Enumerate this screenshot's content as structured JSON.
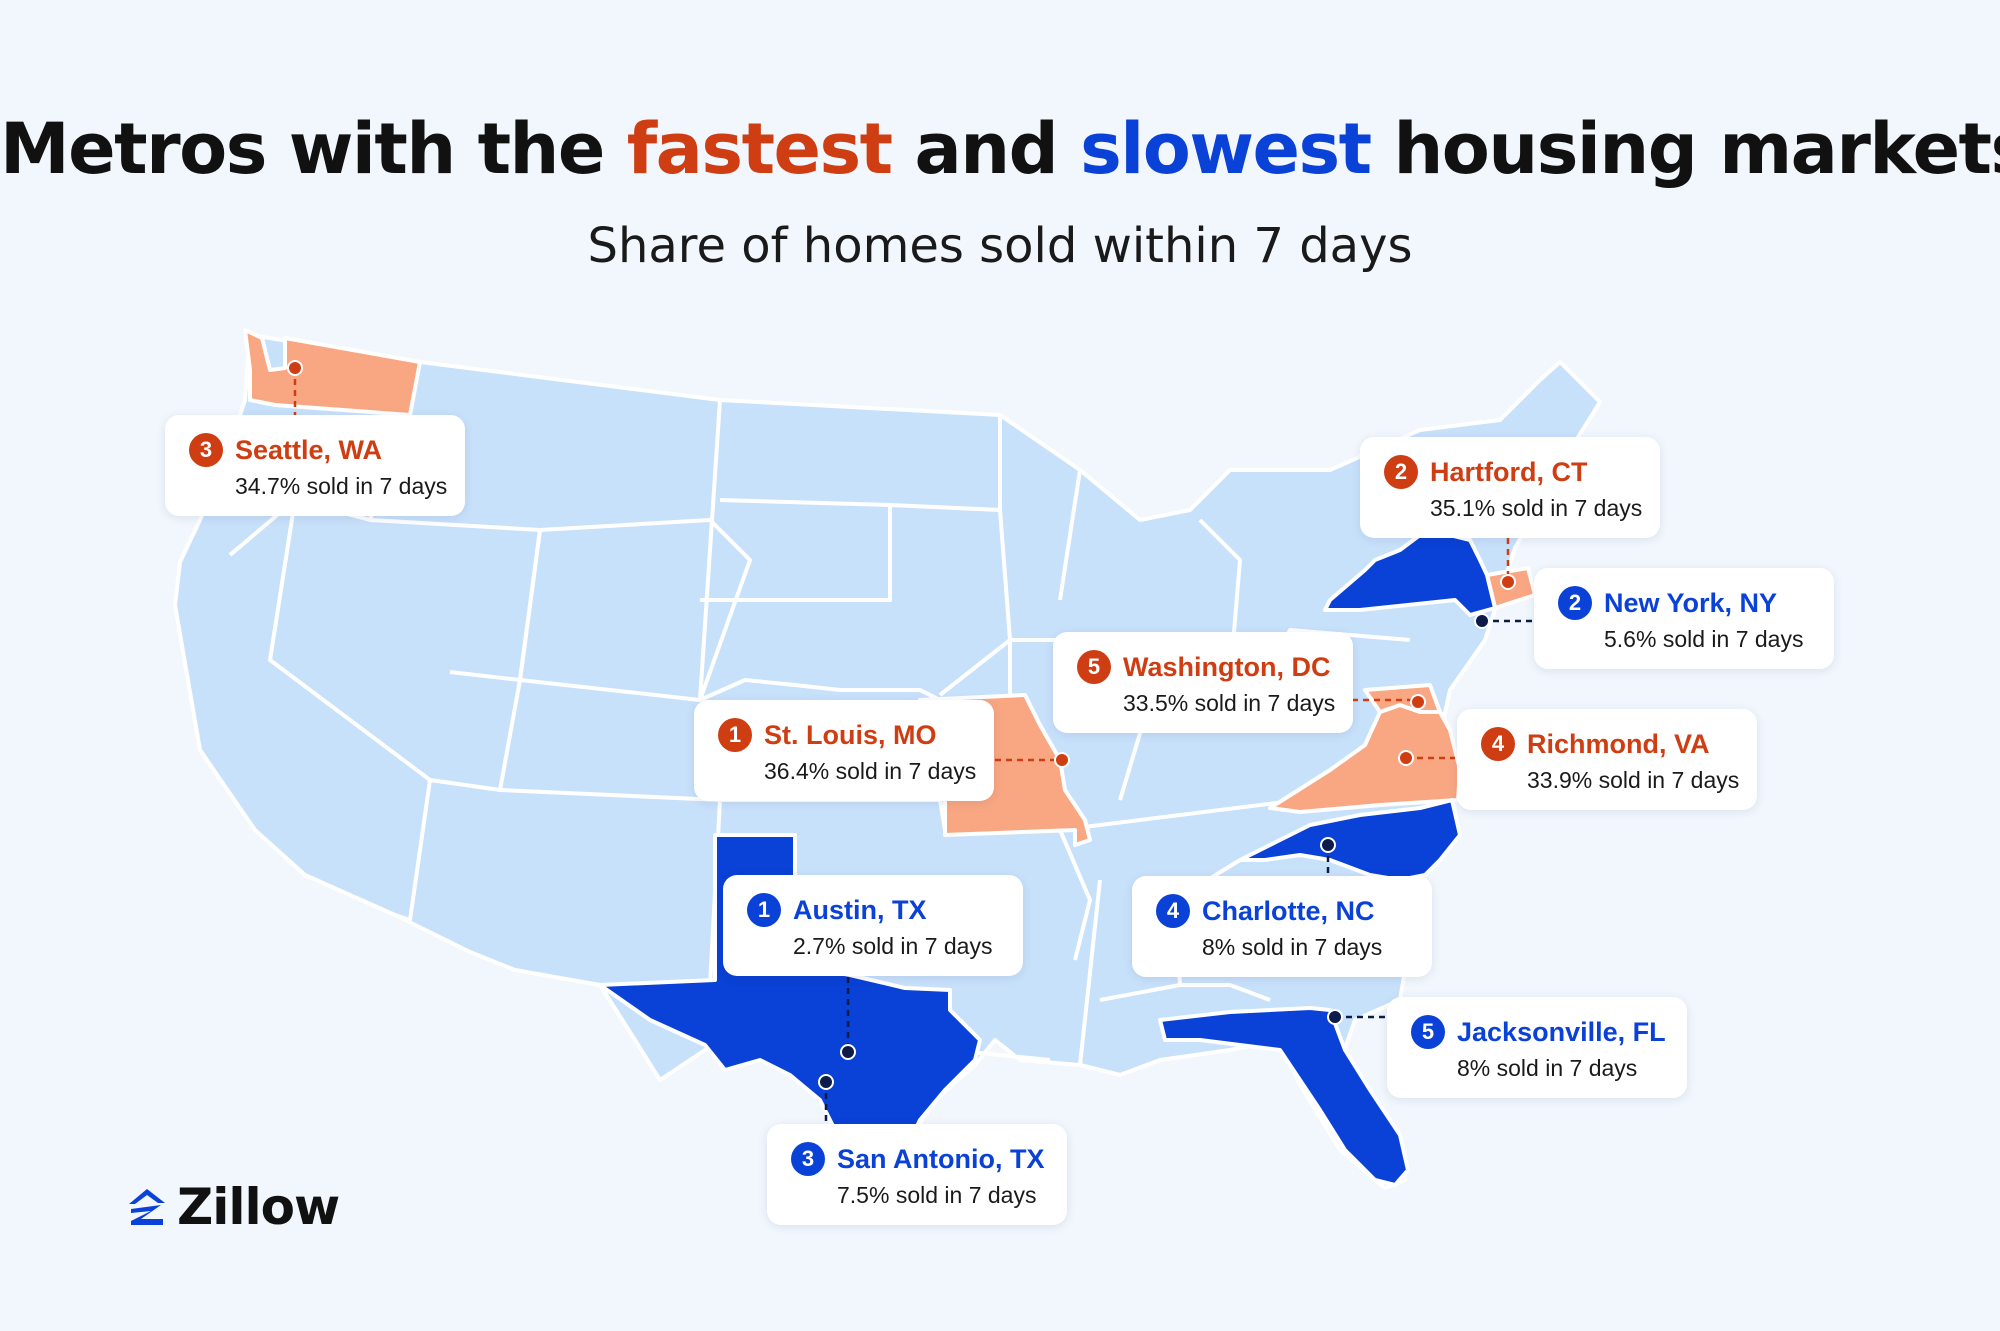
{
  "title": {
    "part1": "Metros with the ",
    "fast_word": "fastest",
    "part2": " and ",
    "slow_word": "slowest",
    "part3": " housing markets"
  },
  "subtitle": "Share of homes sold within 7 days",
  "colors": {
    "fastest": "#cf3d12",
    "fastest_state_fill": "#f9a783",
    "slowest": "#0a41d6",
    "slowest_state_fill": "#0a41d6",
    "other_state_fill": "#c8e1fb",
    "background": "#f2f7fd"
  },
  "fastest_metros": [
    {
      "rank": "1",
      "city": "St. Louis, MO",
      "stat": "36.4% sold in 7 days",
      "share_pct": 36.4
    },
    {
      "rank": "2",
      "city": "Hartford, CT",
      "stat": "35.1% sold in 7 days",
      "share_pct": 35.1
    },
    {
      "rank": "3",
      "city": "Seattle, WA",
      "stat": "34.7% sold in 7 days",
      "share_pct": 34.7
    },
    {
      "rank": "4",
      "city": "Richmond, VA",
      "stat": "33.9% sold in 7 days",
      "share_pct": 33.9
    },
    {
      "rank": "5",
      "city": "Washington, DC",
      "stat": "33.5% sold in 7 days",
      "share_pct": 33.5
    }
  ],
  "slowest_metros": [
    {
      "rank": "1",
      "city": "Austin, TX",
      "stat": "2.7% sold in 7 days",
      "share_pct": 2.7
    },
    {
      "rank": "2",
      "city": "New York, NY",
      "stat": "5.6% sold in 7 days",
      "share_pct": 5.6
    },
    {
      "rank": "3",
      "city": "San Antonio, TX",
      "stat": "7.5% sold in 7 days",
      "share_pct": 7.5
    },
    {
      "rank": "4",
      "city": "Charlotte, NC",
      "stat": "8% sold in 7 days",
      "share_pct": 8
    },
    {
      "rank": "5",
      "city": "Jacksonville, FL",
      "stat": "8% sold in 7 days",
      "share_pct": 8
    }
  ],
  "logo": {
    "text": "Zillow",
    "icon": "zillow-z-icon"
  }
}
